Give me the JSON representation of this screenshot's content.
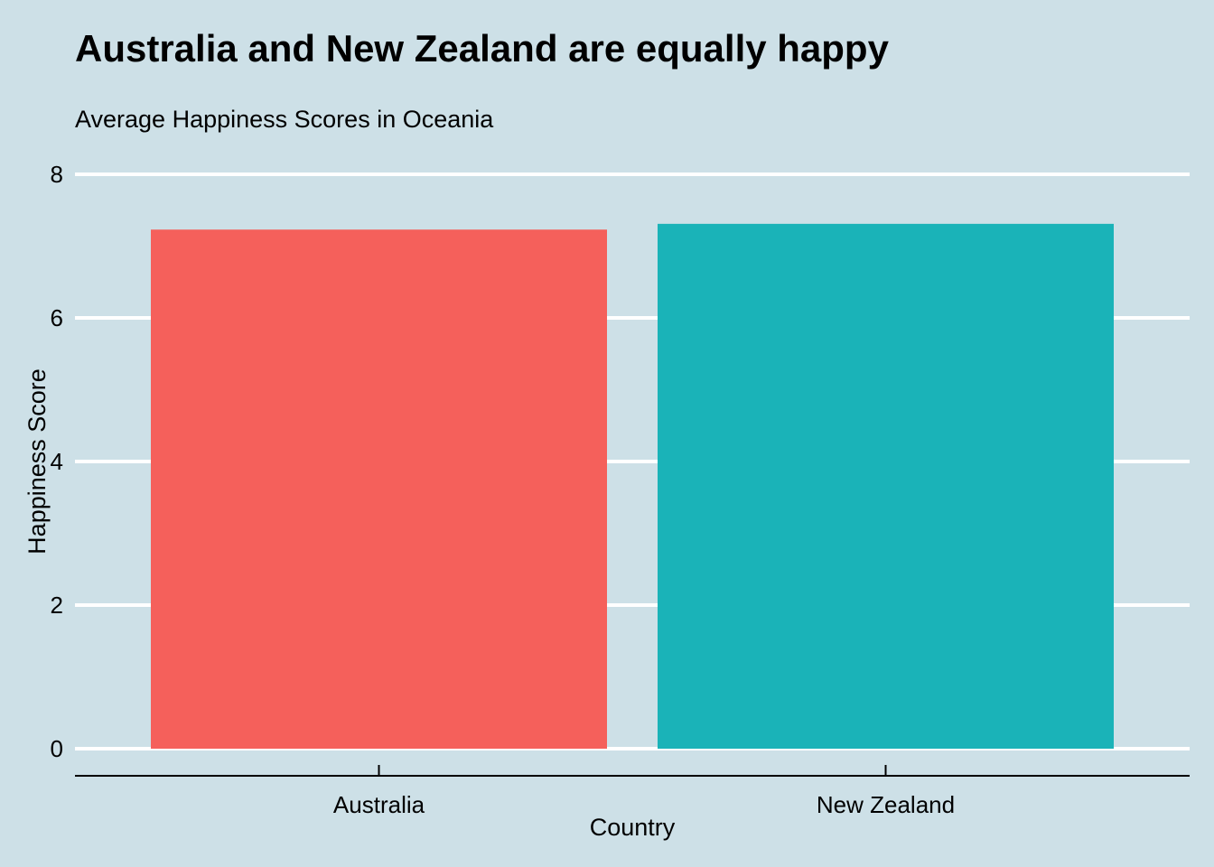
{
  "chart_data": {
    "type": "bar",
    "title": "Australia and New Zealand are equally happy",
    "subtitle": "Average Happiness Scores in Oceania",
    "xlabel": "Country",
    "ylabel": "Happiness Score",
    "categories": [
      "Australia",
      "New Zealand"
    ],
    "values": [
      7.23,
      7.31
    ],
    "colors": [
      "#f5605b",
      "#1ab3b8"
    ],
    "ylim": [
      0,
      8
    ],
    "yticks": [
      0,
      2,
      4,
      6,
      8
    ],
    "grid": true,
    "legend": "none",
    "background": "#cde0e7",
    "grid_color": "#ffffff"
  }
}
